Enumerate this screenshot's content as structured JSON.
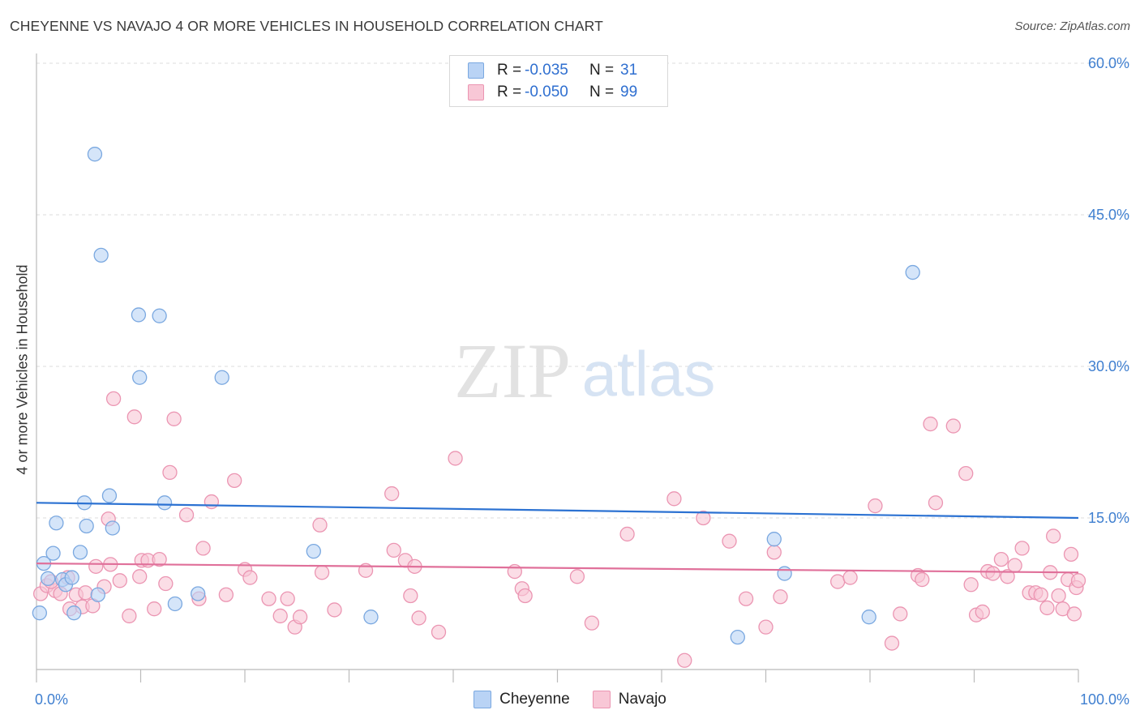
{
  "title": "CHEYENNE VS NAVAJO 4 OR MORE VEHICLES IN HOUSEHOLD CORRELATION CHART",
  "source": "Source: ZipAtlas.com",
  "watermark": {
    "zip": "ZIP",
    "atlas": "atlas"
  },
  "legend_top": {
    "rows": [
      {
        "label": "R =",
        "r": "-0.035",
        "nlabel": "N =",
        "n": "31"
      },
      {
        "label": "R =",
        "r": "-0.050",
        "nlabel": "N =",
        "n": "99"
      }
    ]
  },
  "legend_bottom": {
    "cheyenne": "Cheyenne",
    "navajo": "Navajo"
  },
  "colors": {
    "cheyenne_fill": "#b9d3f5",
    "cheyenne_stroke": "#7aa8e0",
    "cheyenne_line": "#2c72d2",
    "navajo_fill": "#f8c7d6",
    "navajo_stroke": "#eb95b2",
    "navajo_line": "#e0709a",
    "tick_label": "#3f7fd0",
    "grid": "#dddddd"
  },
  "chart_data": {
    "type": "scatter",
    "title": "CHEYENNE VS NAVAJO 4 OR MORE VEHICLES IN HOUSEHOLD CORRELATION CHART",
    "xlabel": "",
    "ylabel": "4 or more Vehicles in Household",
    "xlim": [
      0,
      100
    ],
    "ylim": [
      0,
      60
    ],
    "x_tick_labels": [
      "0.0%",
      "100.0%"
    ],
    "y_ticks": [
      15,
      30,
      45,
      60
    ],
    "y_tick_labels": [
      "15.0%",
      "30.0%",
      "45.0%",
      "60.0%"
    ],
    "series": [
      {
        "name": "Cheyenne",
        "r": -0.035,
        "n": 31,
        "trend": {
          "x": [
            0,
            100
          ],
          "y": [
            16.5,
            15.0
          ]
        },
        "points": [
          {
            "x": 0.3,
            "y": 5.6
          },
          {
            "x": 0.7,
            "y": 10.5
          },
          {
            "x": 1.1,
            "y": 9.0
          },
          {
            "x": 1.6,
            "y": 11.5
          },
          {
            "x": 1.9,
            "y": 14.5
          },
          {
            "x": 2.5,
            "y": 8.9
          },
          {
            "x": 2.8,
            "y": 8.4
          },
          {
            "x": 3.4,
            "y": 9.1
          },
          {
            "x": 3.6,
            "y": 5.6
          },
          {
            "x": 4.2,
            "y": 11.6
          },
          {
            "x": 4.6,
            "y": 16.5
          },
          {
            "x": 4.8,
            "y": 14.2
          },
          {
            "x": 5.6,
            "y": 51.0
          },
          {
            "x": 5.9,
            "y": 7.4
          },
          {
            "x": 6.2,
            "y": 41.0
          },
          {
            "x": 7.0,
            "y": 17.2
          },
          {
            "x": 7.3,
            "y": 14.0
          },
          {
            "x": 9.8,
            "y": 35.1
          },
          {
            "x": 9.9,
            "y": 28.9
          },
          {
            "x": 11.8,
            "y": 35.0
          },
          {
            "x": 12.3,
            "y": 16.5
          },
          {
            "x": 13.3,
            "y": 6.5
          },
          {
            "x": 15.5,
            "y": 7.5
          },
          {
            "x": 17.8,
            "y": 28.9
          },
          {
            "x": 26.6,
            "y": 11.7
          },
          {
            "x": 32.1,
            "y": 5.2
          },
          {
            "x": 67.3,
            "y": 3.2
          },
          {
            "x": 70.8,
            "y": 12.9
          },
          {
            "x": 71.8,
            "y": 9.5
          },
          {
            "x": 79.9,
            "y": 5.2
          },
          {
            "x": 84.1,
            "y": 39.3
          }
        ]
      },
      {
        "name": "Navajo",
        "r": -0.05,
        "n": 99,
        "trend": {
          "x": [
            0,
            100
          ],
          "y": [
            10.5,
            9.6
          ]
        },
        "points": [
          {
            "x": 0.4,
            "y": 7.5
          },
          {
            "x": 1.0,
            "y": 8.3
          },
          {
            "x": 1.8,
            "y": 7.8
          },
          {
            "x": 2.3,
            "y": 7.5
          },
          {
            "x": 3.0,
            "y": 9.1
          },
          {
            "x": 3.2,
            "y": 6.0
          },
          {
            "x": 3.8,
            "y": 7.4
          },
          {
            "x": 4.4,
            "y": 6.2
          },
          {
            "x": 4.7,
            "y": 7.6
          },
          {
            "x": 5.4,
            "y": 6.3
          },
          {
            "x": 5.7,
            "y": 10.2
          },
          {
            "x": 6.5,
            "y": 8.2
          },
          {
            "x": 6.9,
            "y": 14.9
          },
          {
            "x": 7.1,
            "y": 10.4
          },
          {
            "x": 7.4,
            "y": 26.8
          },
          {
            "x": 8.0,
            "y": 8.8
          },
          {
            "x": 8.9,
            "y": 5.3
          },
          {
            "x": 9.4,
            "y": 25.0
          },
          {
            "x": 9.9,
            "y": 9.2
          },
          {
            "x": 10.1,
            "y": 10.8
          },
          {
            "x": 10.7,
            "y": 10.8
          },
          {
            "x": 11.3,
            "y": 6.0
          },
          {
            "x": 11.8,
            "y": 10.9
          },
          {
            "x": 12.4,
            "y": 8.5
          },
          {
            "x": 12.8,
            "y": 19.5
          },
          {
            "x": 13.2,
            "y": 24.8
          },
          {
            "x": 14.4,
            "y": 15.3
          },
          {
            "x": 15.6,
            "y": 7.0
          },
          {
            "x": 16.0,
            "y": 12.0
          },
          {
            "x": 16.8,
            "y": 16.6
          },
          {
            "x": 18.2,
            "y": 7.4
          },
          {
            "x": 19.0,
            "y": 18.7
          },
          {
            "x": 20.0,
            "y": 9.9
          },
          {
            "x": 20.5,
            "y": 9.1
          },
          {
            "x": 22.3,
            "y": 7.0
          },
          {
            "x": 23.4,
            "y": 5.3
          },
          {
            "x": 24.1,
            "y": 7.0
          },
          {
            "x": 24.8,
            "y": 4.2
          },
          {
            "x": 25.3,
            "y": 5.2
          },
          {
            "x": 27.2,
            "y": 14.3
          },
          {
            "x": 27.4,
            "y": 9.6
          },
          {
            "x": 28.6,
            "y": 5.9
          },
          {
            "x": 31.6,
            "y": 9.8
          },
          {
            "x": 34.1,
            "y": 17.4
          },
          {
            "x": 34.3,
            "y": 11.8
          },
          {
            "x": 35.4,
            "y": 10.8
          },
          {
            "x": 35.9,
            "y": 7.3
          },
          {
            "x": 36.3,
            "y": 10.2
          },
          {
            "x": 36.7,
            "y": 5.1
          },
          {
            "x": 38.6,
            "y": 3.7
          },
          {
            "x": 40.2,
            "y": 20.9
          },
          {
            "x": 45.9,
            "y": 9.7
          },
          {
            "x": 46.6,
            "y": 8.0
          },
          {
            "x": 46.9,
            "y": 7.3
          },
          {
            "x": 51.9,
            "y": 9.2
          },
          {
            "x": 53.3,
            "y": 4.6
          },
          {
            "x": 56.7,
            "y": 13.4
          },
          {
            "x": 61.2,
            "y": 16.9
          },
          {
            "x": 62.2,
            "y": 0.9
          },
          {
            "x": 64.0,
            "y": 15.0
          },
          {
            "x": 66.5,
            "y": 12.7
          },
          {
            "x": 68.1,
            "y": 7.0
          },
          {
            "x": 70.0,
            "y": 4.2
          },
          {
            "x": 70.8,
            "y": 11.6
          },
          {
            "x": 71.4,
            "y": 7.2
          },
          {
            "x": 76.9,
            "y": 8.7
          },
          {
            "x": 78.1,
            "y": 9.1
          },
          {
            "x": 80.5,
            "y": 16.2
          },
          {
            "x": 82.1,
            "y": 2.6
          },
          {
            "x": 82.9,
            "y": 5.5
          },
          {
            "x": 84.6,
            "y": 9.3
          },
          {
            "x": 85.0,
            "y": 8.9
          },
          {
            "x": 85.8,
            "y": 24.3
          },
          {
            "x": 86.3,
            "y": 16.5
          },
          {
            "x": 88.0,
            "y": 24.1
          },
          {
            "x": 89.2,
            "y": 19.4
          },
          {
            "x": 89.7,
            "y": 8.4
          },
          {
            "x": 90.2,
            "y": 5.4
          },
          {
            "x": 90.8,
            "y": 5.7
          },
          {
            "x": 91.3,
            "y": 9.7
          },
          {
            "x": 91.8,
            "y": 9.5
          },
          {
            "x": 92.6,
            "y": 10.9
          },
          {
            "x": 93.2,
            "y": 9.2
          },
          {
            "x": 93.9,
            "y": 10.3
          },
          {
            "x": 94.6,
            "y": 12.0
          },
          {
            "x": 95.3,
            "y": 7.6
          },
          {
            "x": 95.9,
            "y": 7.6
          },
          {
            "x": 96.4,
            "y": 7.4
          },
          {
            "x": 97.0,
            "y": 6.1
          },
          {
            "x": 97.3,
            "y": 9.6
          },
          {
            "x": 97.6,
            "y": 13.2
          },
          {
            "x": 98.1,
            "y": 7.3
          },
          {
            "x": 98.5,
            "y": 6.0
          },
          {
            "x": 99.0,
            "y": 8.9
          },
          {
            "x": 99.3,
            "y": 11.4
          },
          {
            "x": 99.6,
            "y": 5.5
          },
          {
            "x": 99.8,
            "y": 8.1
          },
          {
            "x": 100.0,
            "y": 8.8
          },
          {
            "x": 1.4,
            "y": 8.7
          }
        ]
      }
    ]
  }
}
